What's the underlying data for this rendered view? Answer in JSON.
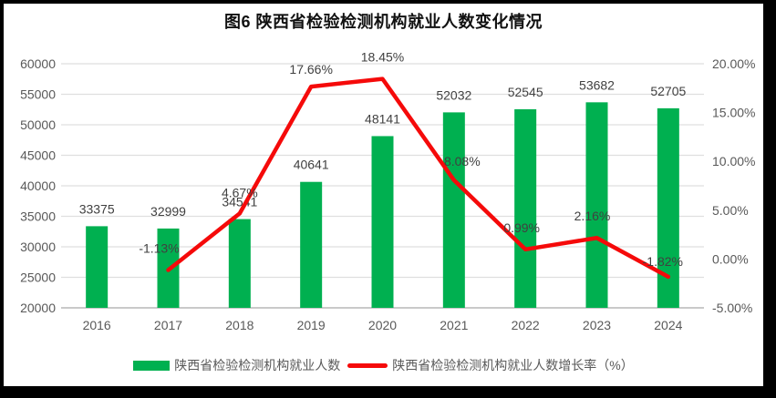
{
  "chart_data": {
    "type": "combo-bar-line",
    "title": "图6 陕西省检验检测机构就业人数变化情况",
    "categories": [
      "2016",
      "2017",
      "2018",
      "2019",
      "2020",
      "2021",
      "2022",
      "2023",
      "2024"
    ],
    "series": [
      {
        "name": "陕西省检验检测机构就业人数",
        "type": "bar",
        "axis": "left",
        "color": "#00B050",
        "values": [
          33375,
          32999,
          34541,
          40641,
          48141,
          52032,
          52545,
          53682,
          52705
        ],
        "labels": [
          "33375",
          "32999",
          "34541",
          "40641",
          "48141",
          "52032",
          "52545",
          "53682",
          "52705"
        ]
      },
      {
        "name": "陕西省检验检测机构就业人数增长率（%）",
        "type": "line",
        "axis": "right",
        "color": "#F50A0A",
        "values": [
          null,
          -1.13,
          4.67,
          17.66,
          18.45,
          8.08,
          0.99,
          2.16,
          -1.82
        ],
        "labels": [
          "",
          "-1.13%",
          "4.67%",
          "17.66%",
          "18.45%",
          "8.08%",
          "0.99%",
          "2.16%",
          "-1.82%"
        ],
        "label_offsets": [
          [
            0,
            0
          ],
          [
            -10,
            -19
          ],
          [
            0,
            -18
          ],
          [
            0,
            -14
          ],
          [
            0,
            -19
          ],
          [
            9,
            -16
          ],
          [
            -4,
            -19
          ],
          [
            -5,
            -19
          ],
          [
            -6,
            -12
          ]
        ]
      }
    ],
    "left_axis": {
      "min": 20000,
      "max": 60000,
      "step": 5000,
      "tick_labels": [
        "20000",
        "25000",
        "30000",
        "35000",
        "40000",
        "45000",
        "50000",
        "55000",
        "60000"
      ]
    },
    "right_axis": {
      "min": -5,
      "max": 20,
      "step": 5,
      "tick_labels": [
        "-5.00%",
        "0.00%",
        "5.00%",
        "10.00%",
        "15.00%",
        "20.00%"
      ]
    },
    "grid": true,
    "legend_position": "bottom",
    "colors": {
      "grid": "#DFDFDF",
      "axis_line": "#C9C9C9",
      "tick_text": "#595959",
      "data_label_text": "#404040",
      "title_text": "#111111"
    }
  }
}
